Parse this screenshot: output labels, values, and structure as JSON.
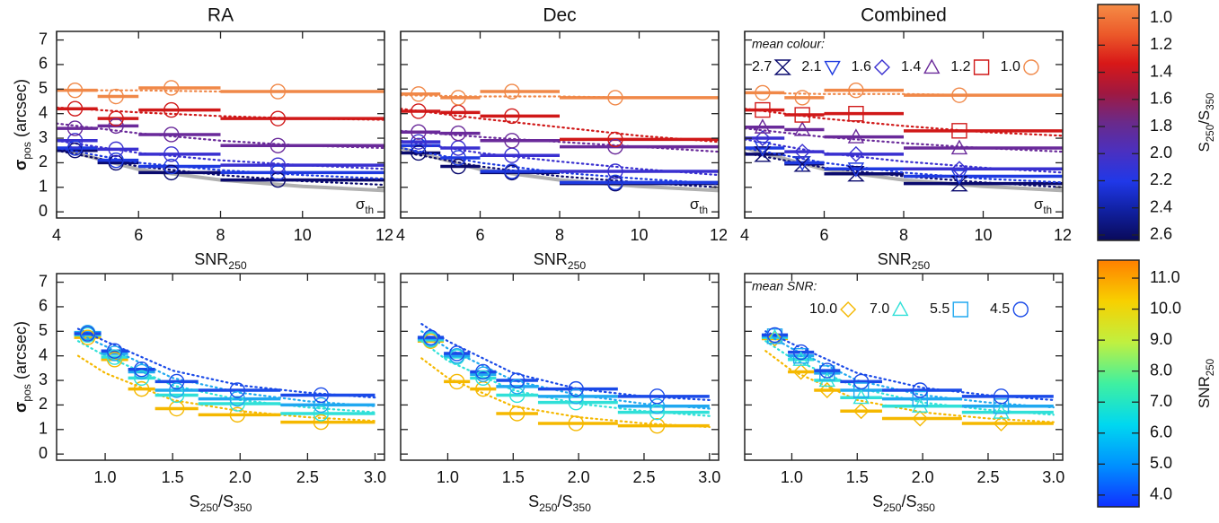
{
  "chart_data": [
    {
      "type": "step",
      "title": "RA",
      "xlabel": [
        {
          "text": "SNR"
        },
        {
          "text": "250",
          "sub": true
        }
      ],
      "ylabel": [
        {
          "text": "σ",
          "bold": true
        },
        {
          "text": "pos",
          "sub": true
        },
        {
          "text": " (arcsec)"
        }
      ],
      "xlim": [
        4,
        12
      ],
      "ylim": [
        -0.25,
        7.35
      ],
      "xticks": [
        4,
        6,
        8,
        10,
        12
      ],
      "yticks": [
        0,
        1,
        2,
        3,
        4,
        5,
        6,
        7
      ],
      "bins": [
        4,
        5,
        6,
        8,
        12
      ],
      "x": [
        4.45,
        5.45,
        6.8,
        9.4
      ],
      "fit_x": [
        4,
        6,
        8,
        10,
        12
      ],
      "reference": {
        "label": [
          {
            "text": "σ"
          },
          {
            "text": "th",
            "sub": true
          }
        ],
        "color": "#b0b0b0",
        "values": [
          2.6,
          1.73,
          1.3,
          1.04,
          0.87
        ]
      },
      "series": [
        {
          "color": "#0a0a6e",
          "marker": "circle",
          "values": [
            2.5,
            2.0,
            1.6,
            1.3
          ],
          "fit": [
            2.5,
            1.85,
            1.5,
            1.25,
            1.1
          ]
        },
        {
          "color": "#1e3ae0",
          "marker": "circle",
          "values": [
            2.6,
            2.1,
            1.85,
            1.6
          ],
          "fit": [
            2.6,
            2.0,
            1.7,
            1.5,
            1.35
          ]
        },
        {
          "color": "#3a30d0",
          "marker": "circle",
          "values": [
            2.9,
            2.55,
            2.35,
            1.9
          ],
          "fit": [
            2.9,
            2.4,
            2.1,
            1.9,
            1.75
          ]
        },
        {
          "color": "#6a2a9a",
          "marker": "circle",
          "values": [
            3.4,
            3.5,
            3.15,
            2.7
          ],
          "fit": [
            3.6,
            3.2,
            2.9,
            2.7,
            2.6
          ]
        },
        {
          "color": "#d01818",
          "marker": "circle",
          "values": [
            4.2,
            3.8,
            4.15,
            3.8
          ],
          "fit": [
            4.25,
            4.05,
            3.9,
            3.8,
            3.75
          ]
        },
        {
          "color": "#f08848",
          "marker": "circle",
          "values": [
            4.95,
            4.7,
            5.05,
            4.9
          ],
          "fit": [
            4.95,
            4.95,
            4.9,
            4.9,
            4.9
          ]
        }
      ]
    },
    {
      "type": "step",
      "title": "Dec",
      "xlabel": [
        {
          "text": "SNR"
        },
        {
          "text": "250",
          "sub": true
        }
      ],
      "xlim": [
        4,
        12
      ],
      "ylim": [
        -0.25,
        7.35
      ],
      "xticks": [
        4,
        6,
        8,
        10,
        12
      ],
      "yticks": [
        0,
        1,
        2,
        3,
        4,
        5,
        6,
        7
      ],
      "bins": [
        4,
        5,
        6,
        8,
        12
      ],
      "x": [
        4.45,
        5.45,
        6.8,
        9.4
      ],
      "fit_x": [
        4,
        6,
        8,
        10,
        12
      ],
      "reference": {
        "label": [
          {
            "text": "σ"
          },
          {
            "text": "th",
            "sub": true
          }
        ],
        "color": "#b0b0b0",
        "values": [
          2.6,
          1.73,
          1.3,
          1.04,
          0.87
        ]
      },
      "series": [
        {
          "color": "#0a0a6e",
          "marker": "circle",
          "values": [
            2.4,
            1.85,
            1.6,
            1.15
          ],
          "fit": [
            2.45,
            1.85,
            1.45,
            1.2,
            1.0
          ]
        },
        {
          "color": "#1e3ae0",
          "marker": "circle",
          "values": [
            2.7,
            2.2,
            1.65,
            1.2
          ],
          "fit": [
            2.6,
            2.0,
            1.6,
            1.35,
            1.15
          ]
        },
        {
          "color": "#3a30d0",
          "marker": "circle",
          "values": [
            2.85,
            2.6,
            2.3,
            1.65
          ],
          "fit": [
            2.9,
            2.4,
            2.05,
            1.75,
            1.5
          ]
        },
        {
          "color": "#6a2a9a",
          "marker": "circle",
          "values": [
            3.25,
            3.2,
            2.9,
            2.65
          ],
          "fit": [
            3.3,
            3.05,
            2.85,
            2.65,
            2.45
          ]
        },
        {
          "color": "#d01818",
          "marker": "circle",
          "values": [
            4.1,
            4.05,
            3.9,
            2.95
          ],
          "fit": [
            4.2,
            3.8,
            3.45,
            3.1,
            2.85
          ]
        },
        {
          "color": "#f08848",
          "marker": "circle",
          "values": [
            4.8,
            4.65,
            4.9,
            4.65
          ],
          "fit": [
            4.75,
            4.7,
            4.7,
            4.65,
            4.65
          ]
        }
      ]
    },
    {
      "type": "step",
      "title": "Combined",
      "xlabel": [
        {
          "text": "SNR"
        },
        {
          "text": "250",
          "sub": true
        }
      ],
      "xlim": [
        4,
        12
      ],
      "ylim": [
        -0.25,
        7.35
      ],
      "xticks": [
        4,
        6,
        8,
        10,
        12
      ],
      "yticks": [
        0,
        1,
        2,
        3,
        4,
        5,
        6,
        7
      ],
      "bins": [
        4,
        5,
        6,
        8,
        12
      ],
      "x": [
        4.45,
        5.45,
        6.8,
        9.4
      ],
      "fit_x": [
        4,
        6,
        8,
        10,
        12
      ],
      "reference": {
        "label": [
          {
            "text": "σ"
          },
          {
            "text": "th",
            "sub": true
          }
        ],
        "color": "#b0b0b0",
        "values": [
          2.6,
          1.73,
          1.3,
          1.04,
          0.87
        ]
      },
      "legend_title": "mean colour:",
      "legend_text_color": "#111111",
      "series": [
        {
          "name": "2.7",
          "color": "#0a0a6e",
          "marker": "hourglass",
          "values": [
            2.35,
            1.95,
            1.55,
            1.15
          ],
          "fit": [
            2.4,
            1.8,
            1.45,
            1.2,
            1.0
          ]
        },
        {
          "name": "2.1",
          "color": "#1e3ae0",
          "marker": "triangle-down",
          "values": [
            2.6,
            2.0,
            1.75,
            1.45
          ],
          "fit": [
            2.6,
            2.0,
            1.6,
            1.35,
            1.2
          ]
        },
        {
          "name": "1.6",
          "color": "#3a30d0",
          "marker": "diamond",
          "values": [
            3.0,
            2.45,
            2.35,
            1.75
          ],
          "fit": [
            2.95,
            2.4,
            2.05,
            1.8,
            1.6
          ]
        },
        {
          "name": "1.4",
          "color": "#6a2a9a",
          "marker": "triangle",
          "values": [
            3.45,
            3.35,
            3.05,
            2.6
          ],
          "fit": [
            3.4,
            3.05,
            2.8,
            2.6,
            2.45
          ]
        },
        {
          "name": "1.2",
          "color": "#d01818",
          "marker": "square",
          "values": [
            4.15,
            3.95,
            4.0,
            3.3
          ],
          "fit": [
            4.2,
            3.8,
            3.5,
            3.25,
            3.1
          ]
        },
        {
          "name": "1.0",
          "color": "#f08848",
          "marker": "circle",
          "values": [
            4.85,
            4.65,
            4.95,
            4.75
          ],
          "fit": [
            4.85,
            4.8,
            4.8,
            4.75,
            4.75
          ]
        }
      ]
    },
    {
      "type": "step",
      "xlabel": [
        {
          "text": "S"
        },
        {
          "text": "250",
          "sub": true
        },
        {
          "text": "/S"
        },
        {
          "text": "350",
          "sub": true
        }
      ],
      "ylabel": [
        {
          "text": "σ",
          "bold": true
        },
        {
          "text": "pos",
          "sub": true
        },
        {
          "text": " (arcsec)"
        }
      ],
      "xlim": [
        0.64,
        3.07
      ],
      "ylim": [
        -0.25,
        7.35
      ],
      "xticks": [
        {
          "value": 1,
          "label": "1.0"
        },
        {
          "value": 1.5,
          "label": "1.5"
        },
        {
          "value": 2,
          "label": "2.0"
        },
        {
          "value": 2.5,
          "label": "2.5"
        },
        {
          "value": 3,
          "label": "3.0"
        }
      ],
      "yticks": [
        0,
        1,
        2,
        3,
        4,
        5,
        6,
        7
      ],
      "bins": [
        0.77,
        0.97,
        1.17,
        1.37,
        1.69,
        2.3,
        3.0
      ],
      "x": [
        0.87,
        1.07,
        1.27,
        1.53,
        1.98,
        2.6
      ],
      "fit_x": [
        0.8,
        1.0,
        1.5,
        2.0,
        2.5,
        3.0
      ],
      "series": [
        {
          "color": "#f5b800",
          "marker": "circle",
          "values": [
            4.75,
            3.85,
            2.65,
            1.85,
            1.6,
            1.3
          ],
          "fit": [
            4.0,
            3.3,
            2.2,
            1.75,
            1.5,
            1.35
          ]
        },
        {
          "color": "#30e0d8",
          "marker": "circle",
          "values": [
            4.85,
            3.95,
            3.1,
            2.4,
            2.05,
            1.65
          ],
          "fit": [
            4.6,
            4.0,
            2.8,
            2.2,
            1.9,
            1.7
          ]
        },
        {
          "color": "#20a8f0",
          "marker": "circle",
          "values": [
            4.95,
            4.1,
            3.35,
            2.6,
            2.25,
            2.0
          ],
          "fit": [
            4.9,
            4.4,
            3.1,
            2.5,
            2.15,
            1.95
          ]
        },
        {
          "color": "#1a4ae8",
          "marker": "circle",
          "values": [
            4.9,
            4.2,
            3.45,
            2.95,
            2.6,
            2.4
          ],
          "fit": [
            5.1,
            4.6,
            3.4,
            2.8,
            2.5,
            2.3
          ]
        }
      ]
    },
    {
      "type": "step",
      "xlabel": [
        {
          "text": "S"
        },
        {
          "text": "250",
          "sub": true
        },
        {
          "text": "/S"
        },
        {
          "text": "350",
          "sub": true
        }
      ],
      "xlim": [
        0.64,
        3.07
      ],
      "ylim": [
        -0.25,
        7.35
      ],
      "xticks": [
        {
          "value": 1,
          "label": "1.0"
        },
        {
          "value": 1.5,
          "label": "1.5"
        },
        {
          "value": 2,
          "label": "2.0"
        },
        {
          "value": 2.5,
          "label": "2.5"
        },
        {
          "value": 3,
          "label": "3.0"
        }
      ],
      "yticks": [
        0,
        1,
        2,
        3,
        4,
        5,
        6,
        7
      ],
      "bins": [
        0.77,
        0.97,
        1.17,
        1.37,
        1.69,
        2.3,
        3.0
      ],
      "x": [
        0.87,
        1.07,
        1.27,
        1.53,
        1.98,
        2.6
      ],
      "fit_x": [
        0.8,
        1.0,
        1.5,
        2.0,
        2.5,
        3.0
      ],
      "series": [
        {
          "color": "#f5b800",
          "marker": "circle",
          "values": [
            4.6,
            2.95,
            2.65,
            1.65,
            1.25,
            1.15
          ],
          "fit": [
            3.9,
            3.1,
            1.95,
            1.5,
            1.25,
            1.1
          ]
        },
        {
          "color": "#30e0d8",
          "marker": "circle",
          "values": [
            4.65,
            3.95,
            3.1,
            2.4,
            2.1,
            1.7
          ],
          "fit": [
            4.6,
            3.8,
            2.6,
            2.05,
            1.75,
            1.55
          ]
        },
        {
          "color": "#20a8f0",
          "marker": "circle",
          "values": [
            4.7,
            4.0,
            3.25,
            2.75,
            2.35,
            1.95
          ],
          "fit": [
            5.0,
            4.3,
            3.0,
            2.4,
            2.05,
            1.85
          ]
        },
        {
          "color": "#1a4ae8",
          "marker": "circle",
          "values": [
            4.75,
            4.1,
            3.35,
            3.0,
            2.65,
            2.35
          ],
          "fit": [
            5.3,
            4.6,
            3.3,
            2.65,
            2.35,
            2.2
          ]
        }
      ]
    },
    {
      "type": "step",
      "xlabel": [
        {
          "text": "S"
        },
        {
          "text": "250",
          "sub": true
        },
        {
          "text": "/S"
        },
        {
          "text": "350",
          "sub": true
        }
      ],
      "xlim": [
        0.64,
        3.07
      ],
      "ylim": [
        -0.25,
        7.35
      ],
      "xticks": [
        {
          "value": 1,
          "label": "1.0"
        },
        {
          "value": 1.5,
          "label": "1.5"
        },
        {
          "value": 2,
          "label": "2.0"
        },
        {
          "value": 2.5,
          "label": "2.5"
        },
        {
          "value": 3,
          "label": "3.0"
        }
      ],
      "yticks": [
        0,
        1,
        2,
        3,
        4,
        5,
        6,
        7
      ],
      "bins": [
        0.77,
        0.97,
        1.17,
        1.37,
        1.69,
        2.3,
        3.0
      ],
      "x": [
        0.87,
        1.07,
        1.27,
        1.53,
        1.98,
        2.6
      ],
      "fit_x": [
        0.8,
        1.0,
        1.5,
        2.0,
        2.5,
        3.0
      ],
      "legend_title": "mean SNR:",
      "legend_text_color": "#1a1a80",
      "series": [
        {
          "name": "10.0",
          "color": "#f5b800",
          "marker": "diamond",
          "values": [
            4.7,
            3.35,
            2.6,
            1.75,
            1.45,
            1.25
          ],
          "fit": [
            4.2,
            3.4,
            2.2,
            1.7,
            1.45,
            1.3
          ]
        },
        {
          "name": "7.0",
          "color": "#30e0d8",
          "marker": "triangle",
          "values": [
            4.75,
            3.85,
            3.0,
            2.3,
            1.95,
            1.7
          ],
          "fit": [
            4.6,
            3.9,
            2.7,
            2.1,
            1.8,
            1.6
          ]
        },
        {
          "name": "5.5",
          "color": "#20a8f0",
          "marker": "square",
          "values": [
            4.8,
            4.0,
            3.3,
            2.6,
            2.25,
            1.95
          ],
          "fit": [
            4.9,
            4.3,
            3.0,
            2.4,
            2.1,
            1.9
          ]
        },
        {
          "name": "4.5",
          "color": "#1a4ae8",
          "marker": "circle",
          "values": [
            4.85,
            4.15,
            3.4,
            2.95,
            2.6,
            2.35
          ],
          "fit": [
            5.0,
            4.5,
            3.3,
            2.7,
            2.4,
            2.2
          ]
        }
      ]
    },
    {
      "type": "colorbar",
      "reversed": true,
      "label": [
        {
          "text": "S"
        },
        {
          "text": "250",
          "sub": true
        },
        {
          "text": "/S"
        },
        {
          "text": "350",
          "sub": true
        }
      ],
      "clim": [
        0.9,
        2.64
      ],
      "colors": [
        "#f58c46",
        "#ec5a2a",
        "#d81818",
        "#a01840",
        "#6a2a8a",
        "#4a30c0",
        "#2038e8",
        "#1020a0",
        "#0a0a5a"
      ],
      "ticks": [
        {
          "value": 1,
          "label": "1.0"
        },
        {
          "value": 1.2,
          "label": "1.2"
        },
        {
          "value": 1.4,
          "label": "1.4"
        },
        {
          "value": 1.6,
          "label": "1.6"
        },
        {
          "value": 1.8,
          "label": "1.8"
        },
        {
          "value": 2,
          "label": "2.0"
        },
        {
          "value": 2.2,
          "label": "2.2"
        },
        {
          "value": 2.4,
          "label": "2.4"
        },
        {
          "value": 2.6,
          "label": "2.6"
        }
      ]
    },
    {
      "type": "colorbar",
      "reversed": false,
      "label": [
        {
          "text": "SNR"
        },
        {
          "text": "250",
          "sub": true
        }
      ],
      "clim": [
        3.62,
        11.58
      ],
      "colors": [
        "#1030ff",
        "#0090ff",
        "#00d8f0",
        "#40f0a0",
        "#c0f040",
        "#f8d000",
        "#ff8000"
      ],
      "ticks": [
        {
          "value": 4,
          "label": "4.0"
        },
        {
          "value": 5,
          "label": "5.0"
        },
        {
          "value": 6,
          "label": "6.0"
        },
        {
          "value": 7,
          "label": "7.0"
        },
        {
          "value": 8,
          "label": "8.0"
        },
        {
          "value": 9,
          "label": "9.0"
        },
        {
          "value": 10,
          "label": "10.0"
        },
        {
          "value": 11,
          "label": "11.0"
        }
      ]
    }
  ]
}
